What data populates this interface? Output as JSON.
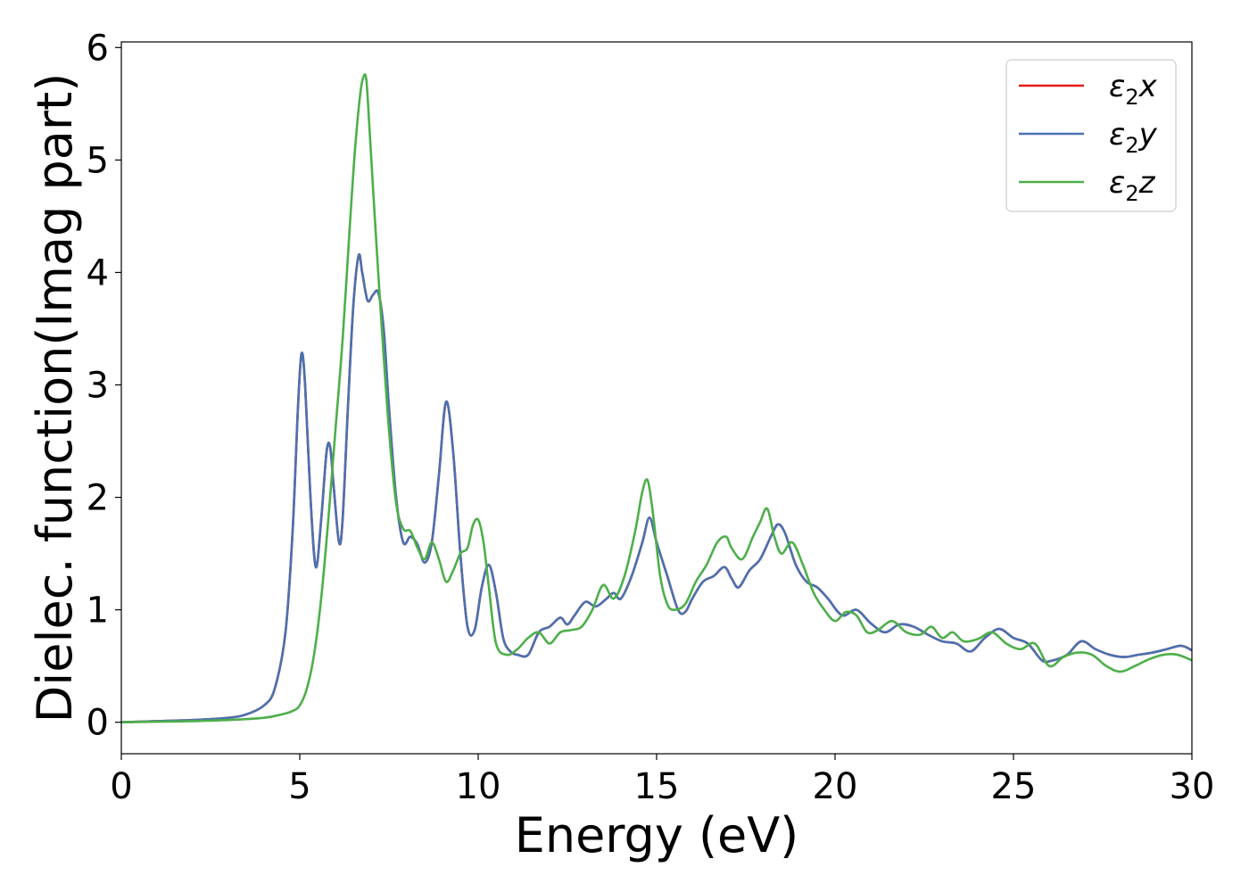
{
  "chart_data": {
    "type": "line",
    "xlabel": "Energy (eV)",
    "ylabel": "Dielec. function(Imag part)",
    "xlim": [
      0,
      30
    ],
    "ylim": [
      -0.28,
      6.05
    ],
    "xticks": [
      0,
      5,
      10,
      15,
      20,
      25,
      30
    ],
    "xtick_labels": [
      "0",
      "5",
      "10",
      "15",
      "20",
      "25",
      "30"
    ],
    "yticks": [
      0,
      1,
      2,
      3,
      4,
      5,
      6
    ],
    "ytick_labels": [
      "0",
      "1",
      "2",
      "3",
      "4",
      "5",
      "6"
    ],
    "grid": false,
    "legend_position": "top-right",
    "series": [
      {
        "name": "ε2x",
        "legend": {
          "base": "ε",
          "sub": "2",
          "var": "x"
        },
        "color": "#e31a1c",
        "x": [
          0,
          1,
          2,
          3,
          3.5,
          4,
          4.3,
          4.6,
          4.8,
          4.95,
          5.05,
          5.15,
          5.3,
          5.45,
          5.6,
          5.75,
          5.85,
          5.95,
          6.1,
          6.2,
          6.35,
          6.5,
          6.65,
          6.75,
          6.9,
          7.05,
          7.2,
          7.35,
          7.5,
          7.7,
          7.9,
          8.1,
          8.3,
          8.5,
          8.7,
          8.9,
          9.1,
          9.3,
          9.5,
          9.7,
          9.9,
          10.1,
          10.3,
          10.5,
          10.7,
          10.9,
          11.1,
          11.4,
          11.7,
          12,
          12.3,
          12.5,
          12.7,
          13,
          13.3,
          13.6,
          13.8,
          14,
          14.3,
          14.6,
          14.8,
          15,
          15.3,
          15.6,
          15.8,
          16,
          16.3,
          16.6,
          16.9,
          17.1,
          17.3,
          17.6,
          17.9,
          18.2,
          18.4,
          18.6,
          18.9,
          19.2,
          19.5,
          19.8,
          20.2,
          20.6,
          21,
          21.4,
          21.8,
          22.2,
          22.6,
          23,
          23.4,
          23.8,
          24.2,
          24.6,
          25,
          25.4,
          25.8,
          26.1,
          26.5,
          26.9,
          27.3,
          27.7,
          28.1,
          28.5,
          28.9,
          29.3,
          29.7,
          30
        ],
        "values": [
          0,
          0.01,
          0.02,
          0.04,
          0.07,
          0.15,
          0.3,
          0.8,
          1.7,
          2.8,
          3.28,
          3.0,
          2.0,
          1.38,
          1.8,
          2.4,
          2.45,
          2.1,
          1.6,
          1.8,
          2.8,
          3.7,
          4.15,
          4.0,
          3.75,
          3.8,
          3.82,
          3.5,
          2.8,
          2.0,
          1.6,
          1.65,
          1.58,
          1.42,
          1.6,
          2.2,
          2.85,
          2.4,
          1.5,
          0.85,
          0.82,
          1.2,
          1.4,
          1.15,
          0.75,
          0.63,
          0.6,
          0.6,
          0.8,
          0.85,
          0.93,
          0.87,
          0.95,
          1.07,
          1.03,
          1.1,
          1.15,
          1.1,
          1.3,
          1.6,
          1.82,
          1.6,
          1.3,
          1.0,
          0.98,
          1.1,
          1.25,
          1.3,
          1.38,
          1.28,
          1.2,
          1.35,
          1.45,
          1.65,
          1.76,
          1.68,
          1.4,
          1.25,
          1.2,
          1.1,
          0.95,
          1.0,
          0.88,
          0.8,
          0.87,
          0.85,
          0.78,
          0.72,
          0.7,
          0.63,
          0.75,
          0.83,
          0.75,
          0.7,
          0.55,
          0.55,
          0.6,
          0.72,
          0.65,
          0.6,
          0.58,
          0.6,
          0.62,
          0.65,
          0.68,
          0.64
        ]
      },
      {
        "name": "ε2y",
        "legend": {
          "base": "ε",
          "sub": "2",
          "var": "y"
        },
        "color": "#4a72b0",
        "x": [
          0,
          1,
          2,
          3,
          3.5,
          4,
          4.3,
          4.6,
          4.8,
          4.95,
          5.05,
          5.15,
          5.3,
          5.45,
          5.6,
          5.75,
          5.85,
          5.95,
          6.1,
          6.2,
          6.35,
          6.5,
          6.65,
          6.75,
          6.9,
          7.05,
          7.2,
          7.35,
          7.5,
          7.7,
          7.9,
          8.1,
          8.3,
          8.5,
          8.7,
          8.9,
          9.1,
          9.3,
          9.5,
          9.7,
          9.9,
          10.1,
          10.3,
          10.5,
          10.7,
          10.9,
          11.1,
          11.4,
          11.7,
          12,
          12.3,
          12.5,
          12.7,
          13,
          13.3,
          13.6,
          13.8,
          14,
          14.3,
          14.6,
          14.8,
          15,
          15.3,
          15.6,
          15.8,
          16,
          16.3,
          16.6,
          16.9,
          17.1,
          17.3,
          17.6,
          17.9,
          18.2,
          18.4,
          18.6,
          18.9,
          19.2,
          19.5,
          19.8,
          20.2,
          20.6,
          21,
          21.4,
          21.8,
          22.2,
          22.6,
          23,
          23.4,
          23.8,
          24.2,
          24.6,
          25,
          25.4,
          25.8,
          26.1,
          26.5,
          26.9,
          27.3,
          27.7,
          28.1,
          28.5,
          28.9,
          29.3,
          29.7,
          30
        ],
        "values": [
          0,
          0.01,
          0.02,
          0.04,
          0.07,
          0.15,
          0.3,
          0.8,
          1.7,
          2.8,
          3.28,
          3.0,
          2.0,
          1.38,
          1.8,
          2.4,
          2.45,
          2.1,
          1.6,
          1.8,
          2.8,
          3.7,
          4.15,
          4.0,
          3.75,
          3.8,
          3.82,
          3.5,
          2.8,
          2.0,
          1.6,
          1.65,
          1.58,
          1.42,
          1.6,
          2.2,
          2.85,
          2.4,
          1.5,
          0.85,
          0.82,
          1.2,
          1.4,
          1.15,
          0.75,
          0.63,
          0.6,
          0.6,
          0.8,
          0.85,
          0.93,
          0.87,
          0.95,
          1.07,
          1.03,
          1.1,
          1.15,
          1.1,
          1.3,
          1.6,
          1.82,
          1.6,
          1.3,
          1.0,
          0.98,
          1.1,
          1.25,
          1.3,
          1.38,
          1.28,
          1.2,
          1.35,
          1.45,
          1.65,
          1.76,
          1.68,
          1.4,
          1.25,
          1.2,
          1.1,
          0.95,
          1.0,
          0.88,
          0.8,
          0.87,
          0.85,
          0.78,
          0.72,
          0.7,
          0.63,
          0.75,
          0.83,
          0.75,
          0.7,
          0.55,
          0.55,
          0.6,
          0.72,
          0.65,
          0.6,
          0.58,
          0.6,
          0.62,
          0.65,
          0.68,
          0.64
        ]
      },
      {
        "name": "ε2z",
        "legend": {
          "base": "ε",
          "sub": "2",
          "var": "z"
        },
        "color": "#4daf4a",
        "x": [
          0,
          1,
          2,
          3,
          4,
          4.5,
          4.8,
          5.0,
          5.2,
          5.4,
          5.6,
          5.8,
          6.0,
          6.2,
          6.4,
          6.55,
          6.7,
          6.8,
          6.87,
          6.95,
          7.1,
          7.3,
          7.5,
          7.7,
          7.9,
          8.1,
          8.3,
          8.5,
          8.7,
          8.9,
          9.1,
          9.3,
          9.5,
          9.7,
          9.85,
          10.0,
          10.15,
          10.3,
          10.5,
          10.8,
          11.1,
          11.4,
          11.7,
          12.0,
          12.3,
          12.6,
          12.9,
          13.2,
          13.5,
          13.8,
          14.1,
          14.4,
          14.6,
          14.75,
          14.9,
          15.1,
          15.3,
          15.5,
          15.8,
          16.1,
          16.4,
          16.7,
          16.95,
          17.1,
          17.4,
          17.7,
          17.9,
          18.1,
          18.3,
          18.5,
          18.8,
          19.1,
          19.4,
          19.7,
          20.0,
          20.3,
          20.6,
          20.9,
          21.2,
          21.6,
          22.0,
          22.4,
          22.7,
          23.0,
          23.3,
          23.6,
          24.0,
          24.4,
          24.8,
          25.2,
          25.6,
          26.0,
          26.4,
          26.8,
          27.2,
          27.6,
          28.0,
          28.4,
          28.8,
          29.2,
          29.6,
          30
        ],
        "values": [
          0,
          0.005,
          0.01,
          0.02,
          0.04,
          0.07,
          0.1,
          0.15,
          0.3,
          0.6,
          1.1,
          1.8,
          2.6,
          3.4,
          4.4,
          5.1,
          5.6,
          5.75,
          5.7,
          5.3,
          4.5,
          3.5,
          2.6,
          1.95,
          1.72,
          1.7,
          1.55,
          1.45,
          1.6,
          1.45,
          1.25,
          1.35,
          1.5,
          1.55,
          1.75,
          1.8,
          1.6,
          1.2,
          0.7,
          0.6,
          0.65,
          0.75,
          0.8,
          0.7,
          0.8,
          0.82,
          0.85,
          1.0,
          1.22,
          1.1,
          1.3,
          1.7,
          2.05,
          2.15,
          1.85,
          1.3,
          1.05,
          1.0,
          1.05,
          1.25,
          1.4,
          1.6,
          1.65,
          1.55,
          1.45,
          1.65,
          1.78,
          1.9,
          1.65,
          1.5,
          1.6,
          1.4,
          1.15,
          1.0,
          0.9,
          0.98,
          0.95,
          0.8,
          0.82,
          0.9,
          0.8,
          0.78,
          0.85,
          0.75,
          0.8,
          0.72,
          0.74,
          0.8,
          0.7,
          0.65,
          0.7,
          0.5,
          0.58,
          0.62,
          0.6,
          0.5,
          0.45,
          0.5,
          0.56,
          0.6,
          0.6,
          0.55
        ]
      }
    ]
  }
}
